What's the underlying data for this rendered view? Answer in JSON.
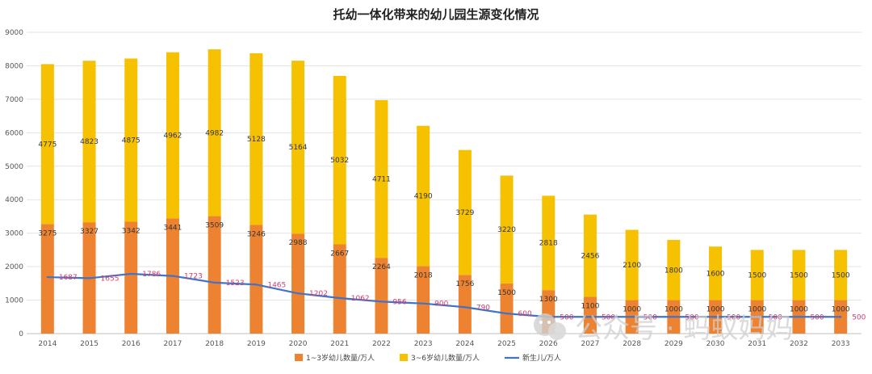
{
  "chart_data": {
    "type": "bar",
    "stacked": true,
    "title": "托幼一体化带来的幼儿园生源变化情况",
    "categories": [
      "2014",
      "2015",
      "2016",
      "2017",
      "2018",
      "2019",
      "2020",
      "2021",
      "2022",
      "2023",
      "2024",
      "2025",
      "2026",
      "2027",
      "2028",
      "2029",
      "2030",
      "2031",
      "2032",
      "2033"
    ],
    "ylim": [
      0,
      9000
    ],
    "yticks": [
      0,
      1000,
      2000,
      3000,
      4000,
      5000,
      6000,
      7000,
      8000,
      9000
    ],
    "grid": true,
    "legend_position": "bottom",
    "series": [
      {
        "name": "1~3岁幼儿数量/万人",
        "kind": "bar",
        "color": "#ed8331",
        "values": [
          3275,
          3327,
          3342,
          3441,
          3509,
          3246,
          2988,
          2667,
          2264,
          2018,
          1756,
          1500,
          1300,
          1100,
          1000,
          1000,
          1000,
          1000,
          1000,
          1000
        ]
      },
      {
        "name": "3~6岁幼儿数量/万人",
        "kind": "bar",
        "color": "#f5c100",
        "values": [
          4775,
          4823,
          4875,
          4962,
          4982,
          5128,
          5164,
          5032,
          4711,
          4190,
          3729,
          3220,
          2818,
          2456,
          2100,
          1800,
          1600,
          1500,
          1500,
          1500
        ]
      },
      {
        "name": "新生儿/万人",
        "kind": "line",
        "color": "#4472c4",
        "values": [
          1687,
          1655,
          1786,
          1723,
          1523,
          1465,
          1202,
          1062,
          956,
          900,
          790,
          600,
          500,
          500,
          500,
          500,
          500,
          500,
          500,
          500
        ]
      }
    ]
  },
  "watermark": {
    "text": "公众号 · 蚂蚁妈妈",
    "icon": "wechat-icon"
  }
}
